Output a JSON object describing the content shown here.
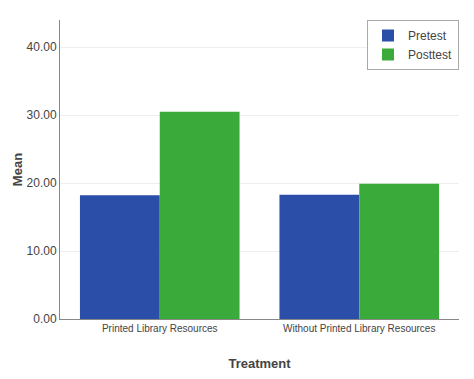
{
  "chart_data": {
    "type": "bar",
    "xlabel": "Treatment",
    "ylabel": "Mean",
    "categories": [
      "Printed Library Resources",
      "Without Printed Library Resources"
    ],
    "series": [
      {
        "name": "Pretest",
        "color": "#2b4ea8",
        "values": [
          18.2,
          18.3
        ]
      },
      {
        "name": "Posttest",
        "color": "#3aab3a",
        "values": [
          30.5,
          19.9
        ]
      }
    ],
    "ylim": [
      0,
      44
    ],
    "yticks": [
      {
        "value": 0,
        "label": "0.00"
      },
      {
        "value": 10,
        "label": "10.00"
      },
      {
        "value": 20,
        "label": "20.00"
      },
      {
        "value": 30,
        "label": "30.00"
      },
      {
        "value": 40,
        "label": "40.00"
      }
    ],
    "grid": true,
    "legend": "upper right"
  }
}
